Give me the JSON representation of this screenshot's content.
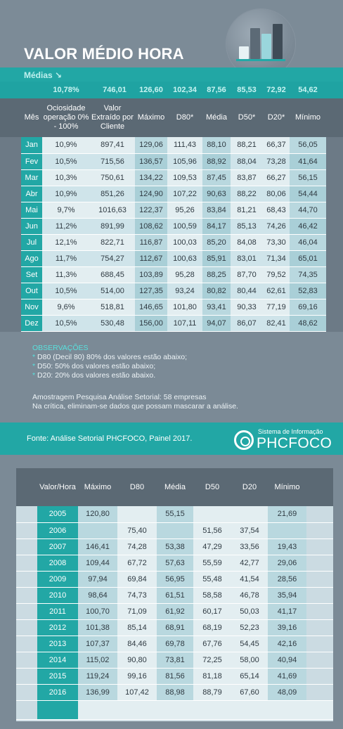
{
  "header": {
    "title": "VALOR MÉDIO HORA",
    "medias_label": "Médias ↘",
    "medias_values": [
      "10,78%",
      "746,01",
      "126,60",
      "102,34",
      "87,56",
      "85,53",
      "72,92",
      "54,62"
    ]
  },
  "monthly": {
    "headers": [
      "Mês",
      "Ociosidade operação 0% - 100%",
      "Valor Extraído por Cliente",
      "Máximo",
      "D80*",
      "Média",
      "D50*",
      "D20*",
      "Mínimo"
    ],
    "rows": [
      [
        "Jan",
        "10,9%",
        "897,41",
        "129,06",
        "111,43",
        "88,10",
        "88,21",
        "66,37",
        "56,05"
      ],
      [
        "Fev",
        "10,5%",
        "715,56",
        "136,57",
        "105,96",
        "88,92",
        "88,04",
        "73,28",
        "41,64"
      ],
      [
        "Mar",
        "10,3%",
        "750,61",
        "134,22",
        "109,53",
        "87,45",
        "83,87",
        "66,27",
        "56,15"
      ],
      [
        "Abr",
        "10,9%",
        "851,26",
        "124,90",
        "107,22",
        "90,63",
        "88,22",
        "80,06",
        "54,44"
      ],
      [
        "Mai",
        "9,7%",
        "1016,63",
        "122,37",
        "95,26",
        "83,84",
        "81,21",
        "68,43",
        "44,70"
      ],
      [
        "Jun",
        "11,2%",
        "891,99",
        "108,62",
        "100,59",
        "84,17",
        "85,13",
        "74,26",
        "46,42"
      ],
      [
        "Jul",
        "12,1%",
        "822,71",
        "116,87",
        "100,03",
        "85,20",
        "84,08",
        "73,30",
        "46,04"
      ],
      [
        "Ago",
        "11,7%",
        "754,27",
        "112,67",
        "100,63",
        "85,91",
        "83,01",
        "71,34",
        "65,01"
      ],
      [
        "Set",
        "11,3%",
        "688,45",
        "103,89",
        "95,28",
        "88,25",
        "87,70",
        "79,52",
        "74,35"
      ],
      [
        "Out",
        "10,5%",
        "514,00",
        "127,35",
        "93,24",
        "80,82",
        "80,44",
        "62,61",
        "52,83"
      ],
      [
        "Nov",
        "9,6%",
        "518,81",
        "146,65",
        "101,80",
        "93,41",
        "90,33",
        "77,19",
        "69,16"
      ],
      [
        "Dez",
        "10,5%",
        "530,48",
        "156,00",
        "107,11",
        "94,07",
        "86,07",
        "82,41",
        "48,62"
      ]
    ]
  },
  "observations": {
    "title": "OBSERVAÇÕES",
    "items": [
      "D80 (Decil 80) 80% dos valores estão abaixo;",
      "D50: 50% dos valores estão abaixo;",
      "D20: 20% dos valores estão abaixo."
    ],
    "sample": "Amostragem Pesquisa Análise Setorial: 58 empresas",
    "note": "Na crítica, eliminam-se dados que possam mascarar a análise."
  },
  "footer": {
    "fonte": "Fonte: Análise Setorial PHCFOCO, Painel 2017.",
    "brand_small": "Sistema de Informação",
    "brand_big": "PHCFOCO"
  },
  "yearly": {
    "headers": [
      "Valor/Hora",
      "Máximo",
      "D80",
      "Média",
      "D50",
      "D20",
      "Mínimo"
    ],
    "rows": [
      [
        "2005",
        "120,80",
        "",
        "55,15",
        "",
        "",
        "21,69"
      ],
      [
        "2006",
        "",
        "75,40",
        "",
        "51,56",
        "37,54",
        ""
      ],
      [
        "2007",
        "146,41",
        "74,28",
        "53,38",
        "47,29",
        "33,56",
        "19,43"
      ],
      [
        "2008",
        "109,44",
        "67,72",
        "57,63",
        "55,59",
        "42,77",
        "29,06"
      ],
      [
        "2009",
        "97,94",
        "69,84",
        "56,95",
        "55,48",
        "41,54",
        "28,56"
      ],
      [
        "2010",
        "98,64",
        "74,73",
        "61,51",
        "58,58",
        "46,78",
        "35,94"
      ],
      [
        "2011",
        "100,70",
        "71,09",
        "61,92",
        "60,17",
        "50,03",
        "41,17"
      ],
      [
        "2012",
        "101,38",
        "85,14",
        "68,91",
        "68,19",
        "52,23",
        "39,16"
      ],
      [
        "2013",
        "107,37",
        "84,46",
        "69,78",
        "67,76",
        "54,45",
        "42,16"
      ],
      [
        "2014",
        "115,02",
        "90,80",
        "73,81",
        "72,25",
        "58,00",
        "40,94"
      ],
      [
        "2015",
        "119,24",
        "99,16",
        "81,56",
        "81,18",
        "65,14",
        "41,69"
      ],
      [
        "2016",
        "136,99",
        "107,42",
        "88,98",
        "88,79",
        "67,60",
        "48,09"
      ]
    ]
  }
}
